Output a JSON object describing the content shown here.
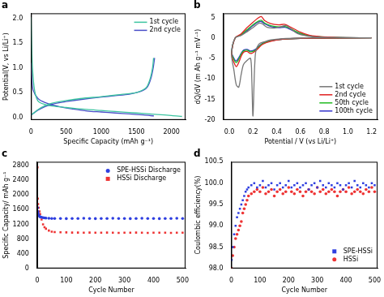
{
  "chart_data": [
    {
      "type": "line",
      "title": "a",
      "x_label": "Specific Capacity (mAh g⁻¹)",
      "y_label": "Potential(V, vs Li/Li⁺)",
      "xlim": [
        0,
        2200
      ],
      "xticks": [
        0,
        500,
        1000,
        1500,
        2000
      ],
      "ylim": [
        -0.05,
        2.1
      ],
      "yticks": [
        {
          "value": 0,
          "label": "0.0"
        },
        0.5,
        {
          "value": 1,
          "label": "1.0"
        },
        1.5,
        {
          "value": 2,
          "label": "2.0"
        }
      ],
      "grid": false,
      "legend": "upper right",
      "series": [
        {
          "name": "1st cycle",
          "color": "#3cc4a0",
          "line_style": "solid",
          "x": [
            0,
            10,
            20,
            50,
            100,
            200,
            300,
            500,
            800,
            1000,
            1200,
            1500,
            1800,
            2000,
            2150,
            2150,
            0,
            50,
            100,
            200,
            300,
            500,
            700,
            1000,
            1200,
            1400,
            1500,
            1600,
            1650,
            1700,
            1730,
            1745
          ],
          "values": [
            2.02,
            1.4,
            1.0,
            0.55,
            0.33,
            0.26,
            0.23,
            0.2,
            0.16,
            0.14,
            0.12,
            0.09,
            0.06,
            0.04,
            0.02,
            null,
            0.05,
            0.1,
            0.16,
            0.24,
            0.29,
            0.34,
            0.38,
            0.42,
            0.45,
            0.48,
            0.5,
            0.56,
            0.62,
            0.8,
            1.0,
            1.2
          ]
        },
        {
          "name": "2nd cycle",
          "color": "#4a4fc8",
          "line_style": "solid",
          "x": [
            0,
            10,
            30,
            100,
            200,
            400,
            600,
            800,
            1000,
            1200,
            1400,
            1600,
            1750,
            1750,
            0,
            50,
            100,
            200,
            300,
            500,
            700,
            1000,
            1200,
            1400,
            1500,
            1600,
            1660,
            1710,
            1740,
            1760
          ],
          "values": [
            1.1,
            0.8,
            0.55,
            0.38,
            0.3,
            0.22,
            0.17,
            0.13,
            0.11,
            0.09,
            0.07,
            0.05,
            0.03,
            null,
            0.05,
            0.1,
            0.15,
            0.22,
            0.27,
            0.32,
            0.36,
            0.41,
            0.44,
            0.47,
            0.5,
            0.55,
            0.62,
            0.8,
            1.0,
            1.2
          ]
        }
      ]
    },
    {
      "type": "line",
      "title": "b",
      "x_label": "Potential / V (vs Li/Li⁺)",
      "y_label": "dQ/dV (m Ah g⁻¹ mV⁻¹)",
      "xlim": [
        -0.05,
        1.25
      ],
      "xticks": [
        {
          "value": 0,
          "label": "0.0"
        },
        0.2,
        0.4,
        0.6,
        0.8,
        {
          "value": 1,
          "label": "1.0"
        },
        1.2
      ],
      "ylim": [
        -20,
        6
      ],
      "yticks": [
        -20,
        -15,
        -10,
        -5,
        0,
        5
      ],
      "grid": false,
      "legend": "lower right",
      "series": [
        {
          "name": "1st cycle",
          "color": "#777777",
          "line_style": "solid",
          "x": [
            1.2,
            0.8,
            0.6,
            0.45,
            0.35,
            0.3,
            0.25,
            0.22,
            0.2,
            0.19,
            0.18,
            0.15,
            0.12,
            0.1,
            0.08,
            0.06,
            0.04,
            0.02,
            0.05,
            0.1,
            0.15,
            0.2,
            0.25,
            0.28,
            0.32,
            0.38,
            0.43,
            0.48,
            0.52,
            0.58,
            0.7,
            0.9,
            1.2
          ],
          "values": [
            0,
            0,
            -0.05,
            -0.2,
            -0.5,
            -0.9,
            -1.5,
            -4,
            -19,
            -10,
            -5,
            -5.5,
            -6.5,
            -9,
            -12,
            -11.5,
            -8,
            -4,
            0,
            0.6,
            1.5,
            2.5,
            3.6,
            3.4,
            2.6,
            2.4,
            2.7,
            3.0,
            2.2,
            1.0,
            0.3,
            0.05,
            0
          ]
        },
        {
          "name": "2nd cycle",
          "color": "#e02020",
          "line_style": "solid",
          "x": [
            1.2,
            0.8,
            0.6,
            0.45,
            0.35,
            0.28,
            0.22,
            0.18,
            0.15,
            0.12,
            0.1,
            0.08,
            0.06,
            0.04,
            0.02,
            0.05,
            0.1,
            0.15,
            0.2,
            0.24,
            0.27,
            0.3,
            0.35,
            0.42,
            0.47,
            0.52,
            0.6,
            0.7,
            0.9,
            1.2
          ],
          "values": [
            0,
            -0.05,
            -0.1,
            -0.3,
            -0.8,
            -1.6,
            -3.2,
            -3.8,
            -3.3,
            -3.5,
            -4.5,
            -6,
            -7,
            -6,
            -4,
            0,
            1,
            2.5,
            3.8,
            4.8,
            5.2,
            4.2,
            3.5,
            3.2,
            3.3,
            2.6,
            1.4,
            0.5,
            0.1,
            0
          ]
        },
        {
          "name": "50th cycle",
          "color": "#22bb22",
          "line_style": "solid",
          "x": [
            1.2,
            0.8,
            0.6,
            0.45,
            0.35,
            0.28,
            0.22,
            0.18,
            0.15,
            0.12,
            0.1,
            0.08,
            0.06,
            0.04,
            0.02,
            0.05,
            0.1,
            0.15,
            0.2,
            0.24,
            0.27,
            0.3,
            0.35,
            0.42,
            0.47,
            0.52,
            0.6,
            0.7,
            0.9,
            1.2
          ],
          "values": [
            0,
            -0.05,
            -0.1,
            -0.3,
            -0.7,
            -1.4,
            -3.0,
            -3.4,
            -3.0,
            -3.2,
            -4,
            -5.2,
            -6,
            -5.3,
            -3.6,
            0,
            0.8,
            2.0,
            3.2,
            4.0,
            4.3,
            3.6,
            3.0,
            2.7,
            2.8,
            2.2,
            1.1,
            0.4,
            0.1,
            0
          ]
        },
        {
          "name": "100th cycle",
          "color": "#3333cc",
          "line_style": "solid",
          "x": [
            1.2,
            0.8,
            0.6,
            0.45,
            0.35,
            0.28,
            0.22,
            0.18,
            0.15,
            0.12,
            0.1,
            0.08,
            0.06,
            0.04,
            0.02,
            0.05,
            0.1,
            0.15,
            0.2,
            0.24,
            0.27,
            0.3,
            0.35,
            0.42,
            0.47,
            0.52,
            0.6,
            0.7,
            0.9,
            1.2
          ],
          "values": [
            0,
            -0.05,
            -0.1,
            -0.3,
            -0.7,
            -1.3,
            -2.8,
            -3.2,
            -2.8,
            -3.0,
            -3.8,
            -4.8,
            -5.6,
            -5.0,
            -3.4,
            0,
            0.7,
            1.8,
            3.0,
            3.8,
            4.0,
            3.4,
            2.8,
            2.5,
            2.6,
            2.0,
            1.0,
            0.35,
            0.1,
            0
          ]
        }
      ]
    },
    {
      "type": "scatter",
      "title": "c",
      "x_label": "Cycle Number",
      "y_label": "Specific Capacity/ mAh g⁻¹",
      "xlim": [
        0,
        510
      ],
      "xticks": [
        0,
        100,
        200,
        300,
        400,
        500
      ],
      "ylim": [
        0,
        2900
      ],
      "yticks": [
        0,
        400,
        800,
        1200,
        1600,
        2000,
        2400,
        2800
      ],
      "grid": false,
      "legend": "upper right",
      "series": [
        {
          "name": "SPE-HSSi Discharge",
          "color": "#2f3fe0",
          "marker": "circle",
          "x": [
            1,
            2,
            3,
            5,
            8,
            10,
            15,
            20,
            25,
            30,
            40,
            50,
            60,
            80,
            100,
            120,
            140,
            160,
            180,
            200,
            220,
            240,
            260,
            280,
            300,
            320,
            340,
            360,
            380,
            400,
            420,
            440,
            460,
            480,
            500
          ],
          "values": [
            1650,
            1550,
            1500,
            1450,
            1420,
            1400,
            1390,
            1380,
            1375,
            1370,
            1365,
            1360,
            1360,
            1360,
            1355,
            1360,
            1360,
            1365,
            1360,
            1355,
            1360,
            1360,
            1365,
            1360,
            1360,
            1355,
            1360,
            1365,
            1360,
            1360,
            1355,
            1360,
            1360,
            1365,
            1360
          ]
        },
        {
          "name": "HSSi Discharge",
          "color": "#ee3333",
          "marker": "square",
          "x": [
            1,
            2,
            3,
            5,
            8,
            10,
            15,
            20,
            25,
            30,
            40,
            50,
            60,
            80,
            100,
            120,
            140,
            160,
            180,
            200,
            220,
            240,
            260,
            280,
            300,
            320,
            340,
            360,
            380,
            400,
            420,
            440,
            460,
            480,
            500
          ],
          "values": [
            2750,
            1900,
            1750,
            1650,
            1550,
            1480,
            1330,
            1200,
            1120,
            1080,
            1030,
            1000,
            990,
            985,
            980,
            975,
            975,
            970,
            975,
            970,
            970,
            975,
            970,
            965,
            970,
            970,
            975,
            970,
            965,
            970,
            970,
            970,
            965,
            970,
            970
          ]
        }
      ]
    },
    {
      "type": "scatter",
      "title": "d",
      "x_label": "Cycle Number",
      "y_label": "Coulombic efficiency(%)",
      "xlim": [
        0,
        510
      ],
      "xticks": [
        0,
        100,
        200,
        300,
        400,
        500
      ],
      "ylim": [
        98,
        100.5
      ],
      "yticks": [
        {
          "value": 98,
          "label": "98.0"
        },
        98.5,
        {
          "value": 99,
          "label": "99.0"
        },
        99.5,
        {
          "value": 100,
          "label": "100.0"
        },
        100.5
      ],
      "grid": false,
      "legend": "lower right",
      "series": [
        {
          "name": "SPE-HSSi",
          "color": "#2f3fe0",
          "marker": "square",
          "x": [
            1,
            5,
            10,
            15,
            20,
            25,
            30,
            35,
            40,
            45,
            50,
            55,
            60,
            70,
            80,
            90,
            100,
            110,
            120,
            130,
            140,
            150,
            160,
            170,
            180,
            190,
            200,
            210,
            220,
            230,
            240,
            250,
            260,
            270,
            280,
            290,
            300,
            310,
            320,
            330,
            340,
            350,
            360,
            370,
            380,
            390,
            400,
            410,
            420,
            430,
            440,
            450,
            460,
            470,
            480,
            490,
            500
          ],
          "values": [
            98.2,
            98.5,
            98.8,
            99.0,
            99.2,
            99.3,
            99.4,
            99.5,
            99.6,
            99.7,
            99.8,
            99.85,
            99.9,
            99.95,
            100.0,
            99.9,
            99.95,
            100.05,
            99.9,
            99.95,
            100.0,
            99.85,
            99.95,
            100.0,
            99.9,
            99.95,
            100.05,
            99.9,
            99.95,
            100.0,
            99.9,
            99.95,
            100.0,
            99.85,
            99.95,
            100.0,
            99.9,
            100.05,
            99.95,
            99.9,
            100.0,
            99.95,
            99.9,
            100.0,
            99.95,
            99.85,
            99.95,
            100.0,
            99.9,
            100.05,
            99.95,
            99.9,
            100.0,
            99.95,
            99.9,
            100.0,
            99.95
          ]
        },
        {
          "name": "HSSi",
          "color": "#ee3333",
          "marker": "circle",
          "x": [
            1,
            5,
            10,
            15,
            20,
            25,
            30,
            35,
            40,
            45,
            50,
            55,
            60,
            70,
            80,
            90,
            100,
            110,
            120,
            130,
            140,
            150,
            160,
            170,
            180,
            190,
            200,
            210,
            220,
            230,
            240,
            250,
            260,
            270,
            280,
            290,
            300,
            310,
            320,
            330,
            340,
            350,
            360,
            370,
            380,
            390,
            400,
            410,
            420,
            430,
            440,
            450,
            460,
            470,
            480,
            490,
            500
          ],
          "values": [
            98.0,
            98.3,
            98.5,
            98.7,
            98.8,
            98.9,
            99.0,
            99.1,
            99.3,
            99.4,
            99.5,
            99.6,
            99.7,
            99.75,
            99.8,
            99.85,
            99.8,
            99.9,
            99.75,
            99.8,
            99.85,
            99.7,
            99.8,
            99.85,
            99.75,
            99.8,
            99.9,
            99.8,
            99.75,
            99.85,
            99.8,
            99.7,
            99.8,
            99.85,
            99.8,
            99.75,
            99.9,
            99.8,
            99.85,
            99.75,
            99.8,
            99.85,
            99.8,
            99.7,
            99.8,
            99.85,
            99.8,
            99.9,
            99.75,
            99.8,
            99.85,
            99.8,
            99.75,
            99.85,
            99.8,
            99.9,
            99.8
          ]
        }
      ]
    }
  ]
}
